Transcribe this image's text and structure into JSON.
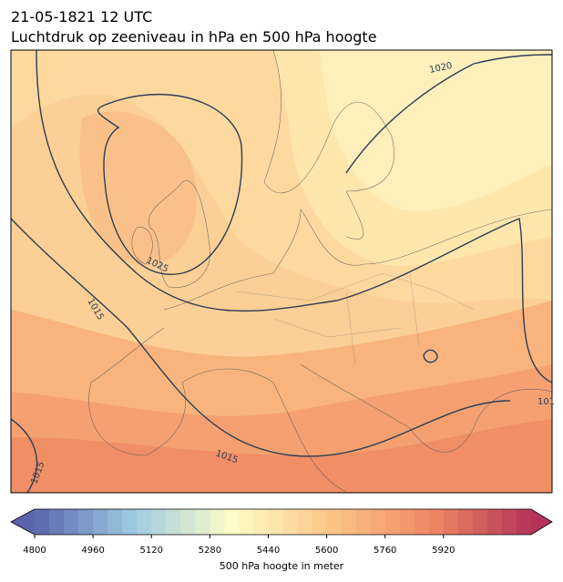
{
  "header": {
    "title": "21-05-1821 12 UTC",
    "subtitle": "Luchtdruk op zeeniveau in hPa en 500 hPa hoogte"
  },
  "map": {
    "contour_labels": [
      "1020",
      "1025",
      "1015",
      "1015",
      "1015",
      "101"
    ]
  },
  "colorbar": {
    "label": "500 hPa hoogte in meter",
    "lim": [
      4800,
      6160
    ],
    "levels": 40,
    "ticks": [
      4800,
      4960,
      5120,
      5280,
      5440,
      5600,
      5760,
      5920
    ],
    "colors": [
      "#5b64ad",
      "#9fcce2",
      "#fefcc6",
      "#fbc586",
      "#ef8762",
      "#b5335a"
    ]
  }
}
